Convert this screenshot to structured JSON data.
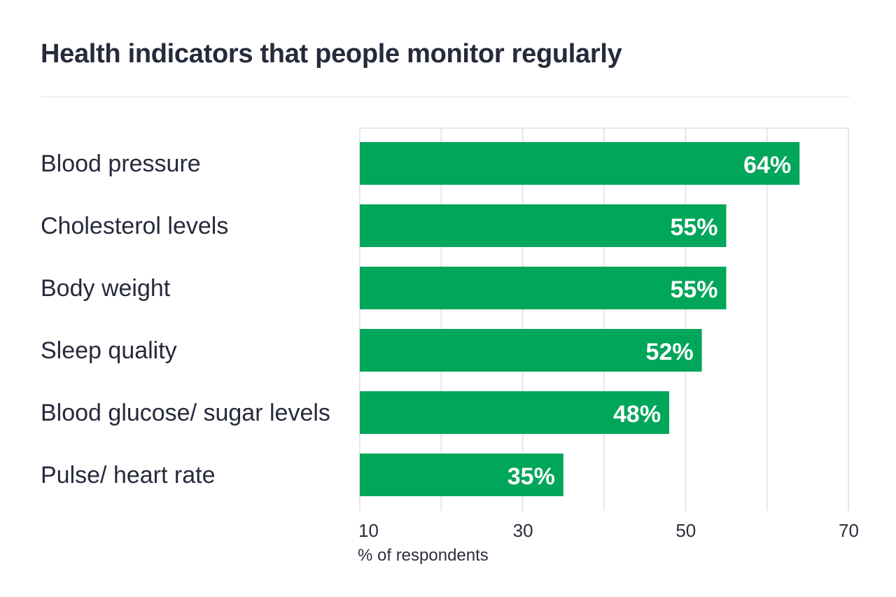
{
  "chart_data": {
    "type": "bar",
    "orientation": "horizontal",
    "title": "Health indicators that people monitor regularly",
    "categories": [
      "Blood pressure",
      "Cholesterol levels",
      "Body weight",
      "Sleep quality",
      "Blood glucose/ sugar levels",
      "Pulse/ heart rate"
    ],
    "values": [
      64,
      55,
      55,
      52,
      48,
      35
    ],
    "value_labels": [
      "64%",
      "55%",
      "55%",
      "52%",
      "48%",
      "35%"
    ],
    "xlim": [
      10,
      70
    ],
    "xticks": [
      10,
      30,
      50,
      70
    ],
    "xtick_labels": [
      "10",
      "30",
      "50",
      "70"
    ],
    "gridlines": [
      10,
      20,
      30,
      40,
      50,
      60,
      70
    ],
    "xlabel": "% of respondents",
    "ylabel": "",
    "grid": true,
    "legend": "none",
    "colors": {
      "bar": "#00a659",
      "grid": "#dcdfe3",
      "text": "#262a3b"
    }
  }
}
